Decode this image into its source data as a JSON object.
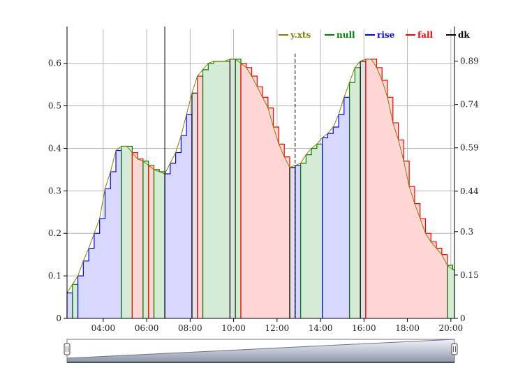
{
  "chart_data": {
    "type": "area",
    "x_range": [
      "02:20",
      "20:10"
    ],
    "y_range": [
      0,
      0.68
    ],
    "y2_range": [
      0,
      1.0
    ],
    "grid": true,
    "legend_placement": "top-right",
    "x_ticks": [
      "04:00",
      "06:00",
      "08:00",
      "10:00",
      "12:00",
      "14:00",
      "16:00",
      "18:00",
      "20:00"
    ],
    "y_ticks": [
      "0",
      "0.1",
      "0.2",
      "0.3",
      "0.4",
      "0.5",
      "0.6"
    ],
    "y2_ticks": [
      "0",
      "0.15",
      "0.3",
      "0.44",
      "0.59",
      "0.74",
      "0.89"
    ],
    "legend": [
      {
        "name": "y.xts",
        "color": "#808000"
      },
      {
        "name": "null",
        "color": "#008000"
      },
      {
        "name": "rise",
        "color": "#0000ff"
      },
      {
        "name": "fall",
        "color": "#ff0000"
      },
      {
        "name": "dk",
        "color": "#000000"
      }
    ],
    "colors": {
      "rise_fill": "#d8d8ff",
      "fall_fill": "#ffd6d6",
      "null_fill": "#d6ebd6",
      "dk_fill": "#e2e2e2",
      "line": "#808000",
      "grid": "#b4b4b4"
    },
    "series": [
      {
        "name": "y.xts",
        "x": [
          "02:20",
          "02:35",
          "02:50",
          "03:05",
          "03:20",
          "03:35",
          "03:50",
          "04:05",
          "04:20",
          "04:35",
          "04:50",
          "05:05",
          "05:20",
          "05:35",
          "05:50",
          "06:05",
          "06:20",
          "06:35",
          "06:50",
          "07:05",
          "07:20",
          "07:35",
          "07:50",
          "08:05",
          "08:20",
          "08:35",
          "08:50",
          "09:05",
          "09:20",
          "09:35",
          "09:50",
          "10:05",
          "10:20",
          "10:35",
          "10:50",
          "11:05",
          "11:20",
          "11:35",
          "11:50",
          "12:05",
          "12:20",
          "12:35",
          "12:50",
          "13:05",
          "13:20",
          "13:35",
          "13:50",
          "14:05",
          "14:20",
          "14:35",
          "14:50",
          "15:05",
          "15:20",
          "15:35",
          "15:50",
          "16:05",
          "16:20",
          "16:35",
          "16:50",
          "17:05",
          "17:20",
          "17:35",
          "17:50",
          "18:05",
          "18:20",
          "18:35",
          "18:50",
          "19:05",
          "19:20",
          "19:35",
          "19:50",
          "20:05",
          "20:10"
        ],
        "values": [
          0.06,
          0.08,
          0.1,
          0.135,
          0.165,
          0.2,
          0.235,
          0.305,
          0.345,
          0.395,
          0.405,
          0.405,
          0.39,
          0.375,
          0.37,
          0.36,
          0.35,
          0.345,
          0.34,
          0.365,
          0.39,
          0.43,
          0.48,
          0.53,
          0.57,
          0.585,
          0.6,
          0.605,
          0.605,
          0.605,
          0.61,
          0.61,
          0.6,
          0.59,
          0.57,
          0.545,
          0.52,
          0.495,
          0.45,
          0.41,
          0.38,
          0.355,
          0.36,
          0.365,
          0.385,
          0.4,
          0.41,
          0.425,
          0.435,
          0.45,
          0.48,
          0.52,
          0.555,
          0.59,
          0.605,
          0.61,
          0.61,
          0.59,
          0.56,
          0.52,
          0.46,
          0.42,
          0.37,
          0.31,
          0.27,
          0.235,
          0.2,
          0.18,
          0.165,
          0.15,
          0.125,
          0.115,
          0.113
        ]
      }
    ],
    "segments": [
      {
        "from": "02:20",
        "to": "02:35",
        "kind": "rise"
      },
      {
        "from": "02:35",
        "to": "02:50",
        "kind": "null"
      },
      {
        "from": "02:50",
        "to": "04:50",
        "kind": "rise"
      },
      {
        "from": "04:50",
        "to": "05:20",
        "kind": "null"
      },
      {
        "from": "05:20",
        "to": "05:50",
        "kind": "fall"
      },
      {
        "from": "05:50",
        "to": "06:05",
        "kind": "null"
      },
      {
        "from": "06:05",
        "to": "06:20",
        "kind": "fall"
      },
      {
        "from": "06:20",
        "to": "06:50",
        "kind": "null"
      },
      {
        "from": "06:50",
        "to": "08:05",
        "kind": "rise"
      },
      {
        "from": "08:05",
        "to": "08:20",
        "kind": "dk"
      },
      {
        "from": "08:20",
        "to": "08:35",
        "kind": "fall"
      },
      {
        "from": "08:35",
        "to": "09:50",
        "kind": "null"
      },
      {
        "from": "09:50",
        "to": "10:05",
        "kind": "dk"
      },
      {
        "from": "10:05",
        "to": "10:20",
        "kind": "null"
      },
      {
        "from": "10:20",
        "to": "12:35",
        "kind": "fall"
      },
      {
        "from": "12:35",
        "to": "12:50",
        "kind": "dk"
      },
      {
        "from": "12:50",
        "to": "13:05",
        "kind": "rise"
      },
      {
        "from": "13:05",
        "to": "14:05",
        "kind": "null"
      },
      {
        "from": "14:05",
        "to": "15:20",
        "kind": "rise"
      },
      {
        "from": "15:20",
        "to": "15:50",
        "kind": "null"
      },
      {
        "from": "15:50",
        "to": "16:05",
        "kind": "dk"
      },
      {
        "from": "16:05",
        "to": "19:50",
        "kind": "fall"
      },
      {
        "from": "19:50",
        "to": "20:10",
        "kind": "null"
      }
    ],
    "markers": [
      {
        "x": "06:50",
        "style": "solid"
      },
      {
        "x": "12:50",
        "style": "dashed"
      }
    ]
  },
  "range_selector": {
    "start": "02:20",
    "end": "20:10"
  }
}
